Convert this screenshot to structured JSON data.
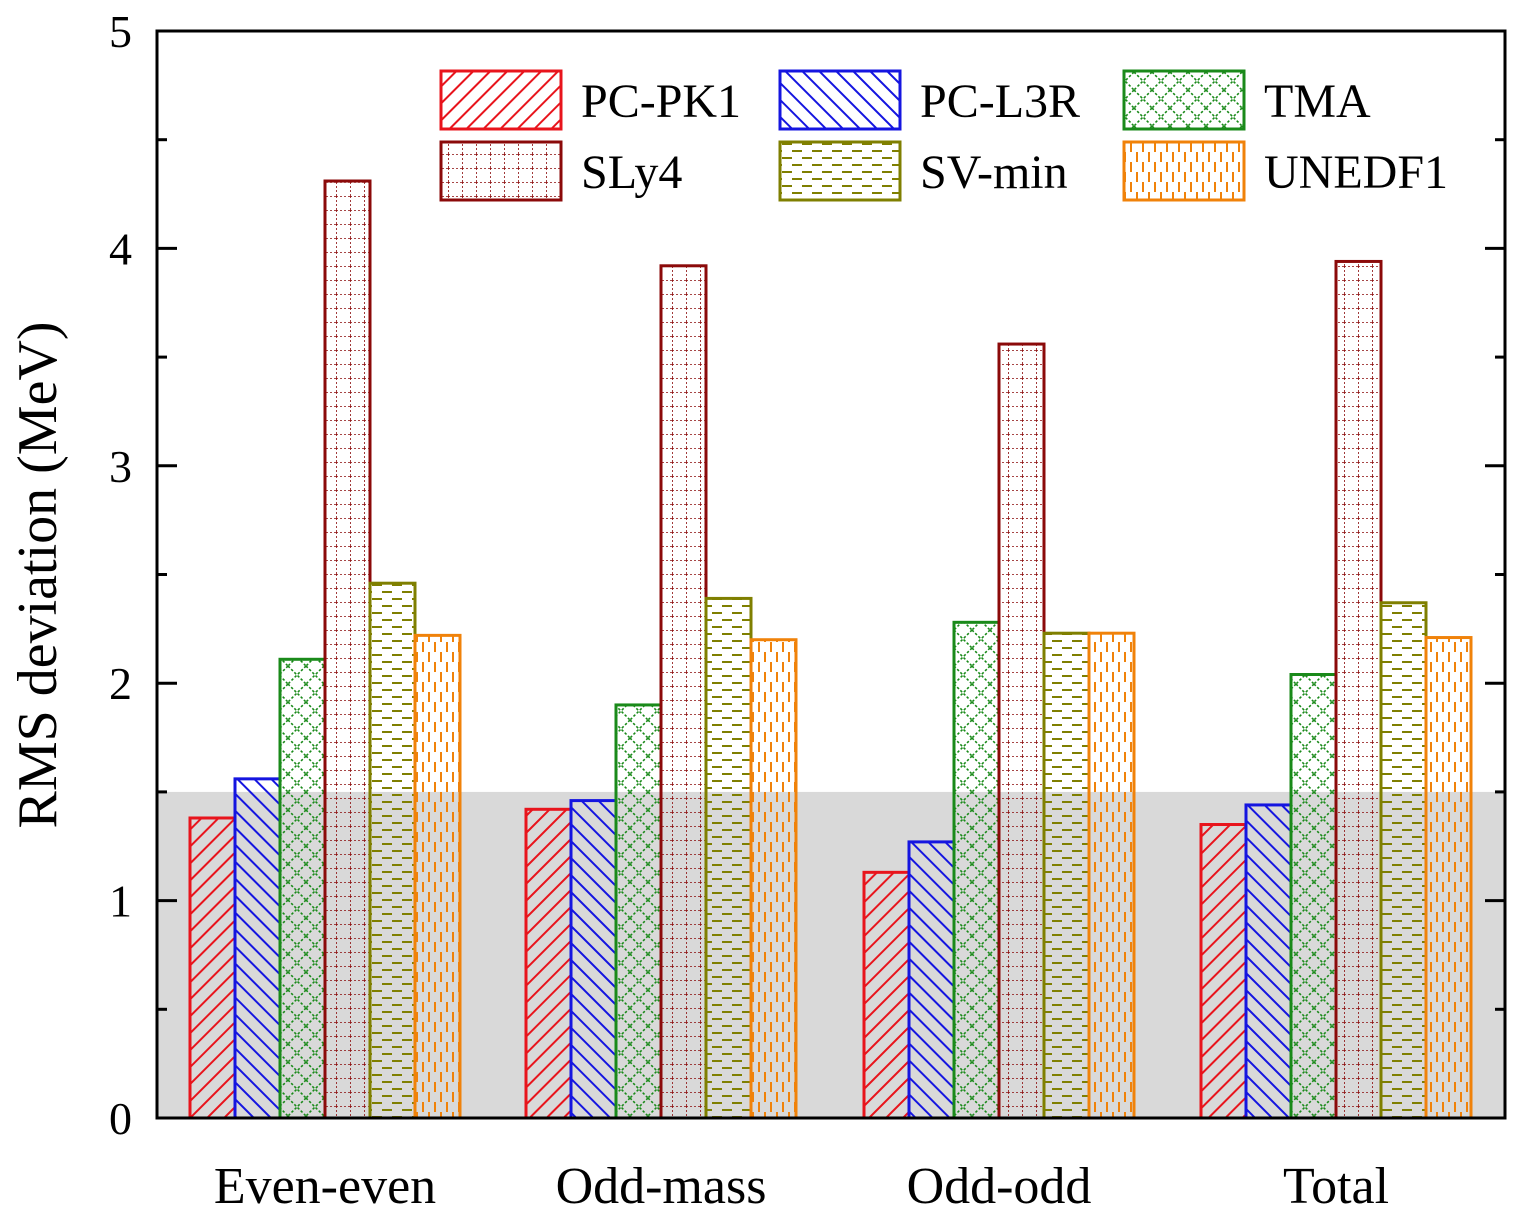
{
  "chart_data": {
    "type": "bar",
    "title": "",
    "xlabel": "",
    "ylabel": "RMS deviation (MeV)",
    "ylim": [
      0,
      5
    ],
    "yticks": [
      0,
      1,
      2,
      3,
      4,
      5
    ],
    "shaded_band": {
      "from": 0,
      "to": 1.5
    },
    "legend_position": "top-right",
    "categories": [
      "Even-even",
      "Odd-mass",
      "Odd-odd",
      "Total"
    ],
    "series": [
      {
        "name": "PC-PK1",
        "color": "#e8141c",
        "pattern": "diag-right",
        "values": [
          1.38,
          1.42,
          1.13,
          1.35
        ]
      },
      {
        "name": "PC-L3R",
        "color": "#1515e0",
        "pattern": "diag-left",
        "values": [
          1.56,
          1.46,
          1.27,
          1.44
        ]
      },
      {
        "name": "TMA",
        "color": "#1a8a1a",
        "pattern": "crosshatch",
        "values": [
          2.11,
          1.9,
          2.28,
          2.04
        ]
      },
      {
        "name": "SLy4",
        "color": "#8b0a0a",
        "pattern": "grid",
        "values": [
          4.31,
          3.92,
          3.56,
          3.94
        ]
      },
      {
        "name": "SV-min",
        "color": "#7f7f00",
        "pattern": "dashes-h",
        "values": [
          2.46,
          2.39,
          2.23,
          2.37
        ]
      },
      {
        "name": "UNEDF1",
        "color": "#f0820a",
        "pattern": "dashes-v",
        "values": [
          2.22,
          2.2,
          2.23,
          2.21
        ]
      }
    ]
  }
}
